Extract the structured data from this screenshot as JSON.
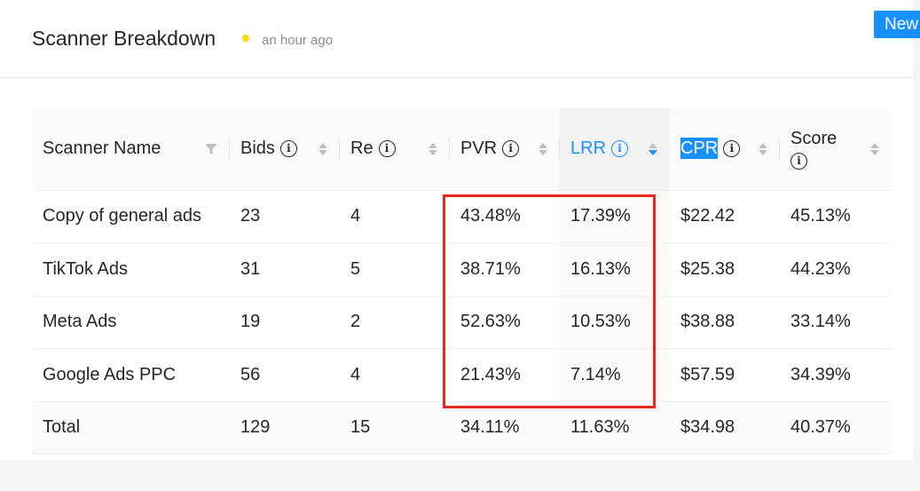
{
  "header": {
    "title": "Scanner Breakdown",
    "updated": "an hour ago",
    "new_button": "New"
  },
  "table": {
    "columns": [
      {
        "label": "Scanner Name",
        "info": false,
        "sort": "filter"
      },
      {
        "label": "Bids",
        "info": true,
        "sort": "none"
      },
      {
        "label": "Re",
        "info": true,
        "sort": "none"
      },
      {
        "label": "PVR",
        "info": true,
        "sort": "none"
      },
      {
        "label": "LRR",
        "info": true,
        "sort": "descend"
      },
      {
        "label": "CPR",
        "info": true,
        "sort": "none"
      },
      {
        "label": "Score",
        "info": true,
        "sort": "none"
      }
    ],
    "rows": [
      [
        "Copy of general ads",
        "23",
        "4",
        "43.48%",
        "17.39%",
        "$22.42",
        "45.13%"
      ],
      [
        "TikTok Ads",
        "31",
        "5",
        "38.71%",
        "16.13%",
        "$25.38",
        "44.23%"
      ],
      [
        "Meta Ads",
        "19",
        "2",
        "52.63%",
        "10.53%",
        "$38.88",
        "33.14%"
      ],
      [
        "Google Ads PPC",
        "56",
        "4",
        "21.43%",
        "7.14%",
        "$57.59",
        "34.39%"
      ]
    ],
    "total": [
      "Total",
      "129",
      "15",
      "34.11%",
      "11.63%",
      "$34.98",
      "40.37%"
    ]
  },
  "colors": {
    "accent": "#1890ff",
    "status_dot": "#fadb14",
    "highlight_box": "#e8291c"
  }
}
